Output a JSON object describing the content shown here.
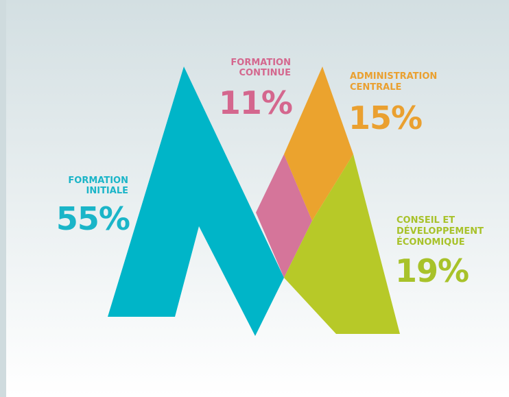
{
  "segments": [
    {
      "label": [
        "FORMATION",
        "INITIALE"
      ],
      "value": "55%"
    },
    {
      "label": [
        "FORMATION",
        "CONTINUE"
      ],
      "value": "11%"
    },
    {
      "label": [
        "ADMINISTRATION",
        "CENTRALE"
      ],
      "value": "15%"
    },
    {
      "label": [
        "CONSEIL ET",
        "DÉVELOPPEMENT",
        "ÉCONOMIQUE"
      ],
      "value": "19%"
    }
  ]
}
